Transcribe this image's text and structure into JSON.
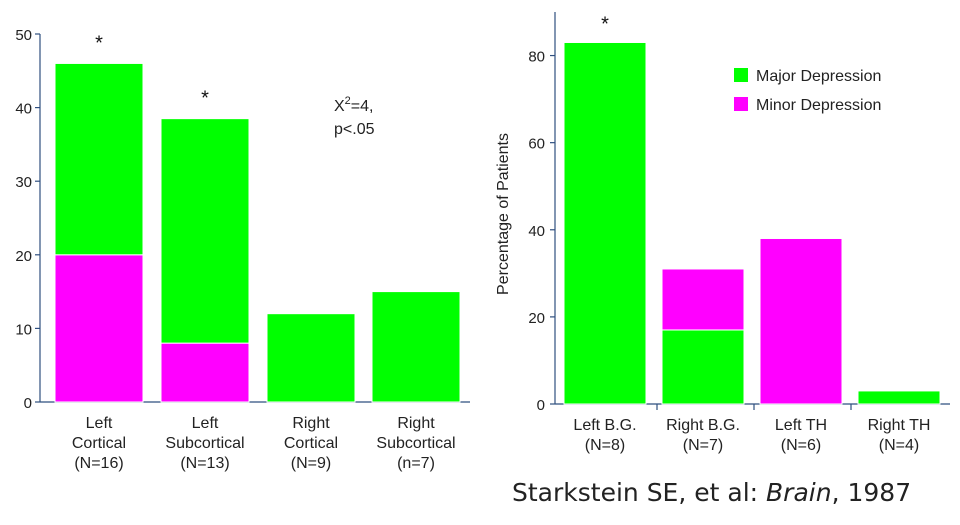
{
  "chart_data": [
    {
      "type": "bar",
      "stacked": true,
      "categories": [
        [
          "Left",
          "Cortical",
          "(N=16)"
        ],
        [
          "Left",
          "Subcortical",
          "(N=13)"
        ],
        [
          "Right",
          "Cortical",
          "(N=9)"
        ],
        [
          "Right",
          "Subcortical",
          "(n=7)"
        ]
      ],
      "series": [
        {
          "name": "Minor Depression",
          "color": "#ff00ff",
          "values": [
            20,
            8,
            0,
            0
          ]
        },
        {
          "name": "Major Depression",
          "color": "#00ff00",
          "values": [
            26,
            30.5,
            12,
            15
          ]
        }
      ],
      "ylim": [
        0,
        50
      ],
      "yticks": [
        0,
        10,
        20,
        30,
        40,
        50
      ],
      "ylabel": "",
      "significance": [
        "*",
        "*",
        "",
        ""
      ],
      "annotation": {
        "chi_base": "X",
        "chi_exp": "2",
        "chi_val": "=4,",
        "p": "p<.05"
      }
    },
    {
      "type": "bar",
      "stacked": true,
      "categories": [
        [
          "Left B.G.",
          "(N=8)"
        ],
        [
          "Right B.G.",
          "(N=7)"
        ],
        [
          "Left TH",
          "(N=6)"
        ],
        [
          "Right TH",
          "(N=4)"
        ]
      ],
      "series": [
        {
          "name": "Major Depression",
          "color": "#00ff00",
          "values": [
            83,
            17,
            0,
            3
          ]
        },
        {
          "name": "Minor Depression",
          "color": "#ff00ff",
          "values": [
            0,
            14,
            38,
            0
          ]
        }
      ],
      "ylim": [
        0,
        90
      ],
      "yticks": [
        0,
        20,
        40,
        60,
        80
      ],
      "ylabel": "Percentage of Patients",
      "significance": [
        "*",
        "",
        "",
        ""
      ],
      "legend": [
        {
          "label": "Major Depression",
          "color": "#00ff00"
        },
        {
          "label": "Minor Depression",
          "color": "#ff00ff"
        }
      ]
    }
  ],
  "citation": {
    "authors": "Starkstein SE, et al: ",
    "journal": "Brain",
    "year": ", 1987"
  }
}
